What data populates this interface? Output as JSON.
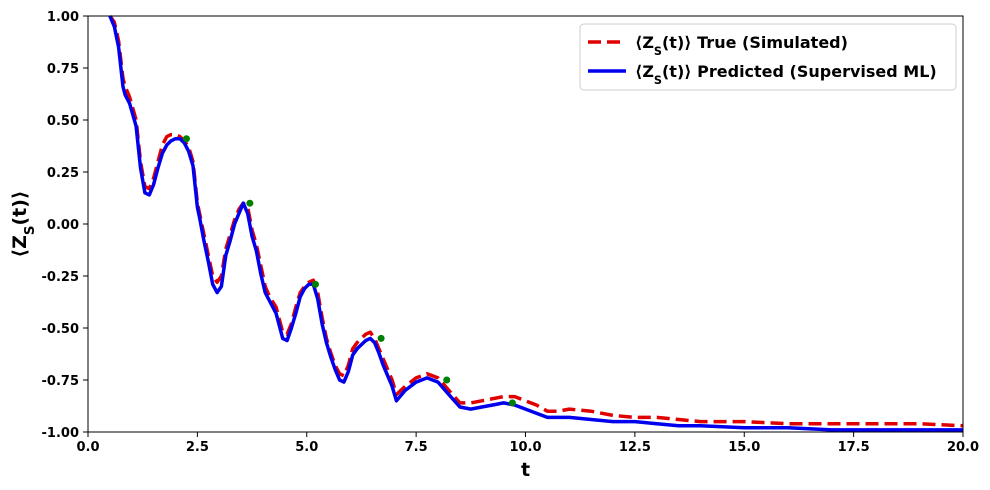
{
  "chart_data": {
    "type": "line",
    "xlabel": "t",
    "ylabel": "⟨Z_S(t)⟩",
    "xlim": [
      0,
      20
    ],
    "ylim": [
      -1,
      1
    ],
    "xticks": [
      "0.0",
      "2.5",
      "5.0",
      "7.5",
      "10.0",
      "12.5",
      "15.0",
      "17.5",
      "20.0"
    ],
    "yticks": [
      "1.00",
      "0.75",
      "0.50",
      "0.25",
      "0.00",
      "-0.25",
      "-0.50",
      "-0.75",
      "-1.00"
    ],
    "legend_position": "top-right",
    "grid": false,
    "colors": {
      "true": "#e00000",
      "predicted": "#0000ee",
      "markers": "#008000"
    },
    "series": [
      {
        "name": "⟨Z_S(t)⟩ True (Simulated)",
        "style": "dashed",
        "x": [
          0.5,
          0.6,
          0.7,
          0.8,
          0.85,
          0.95,
          1.1,
          1.2,
          1.3,
          1.4,
          1.5,
          1.6,
          1.7,
          1.8,
          1.9,
          2.0,
          2.1,
          2.2,
          2.3,
          2.4,
          2.5,
          2.55,
          2.65,
          2.75,
          2.85,
          2.95,
          3.05,
          3.15,
          3.25,
          3.35,
          3.45,
          3.55,
          3.65,
          3.75,
          3.85,
          3.95,
          4.05,
          4.15,
          4.3,
          4.45,
          4.55,
          4.65,
          4.75,
          4.85,
          4.95,
          5.05,
          5.15,
          5.25,
          5.35,
          5.45,
          5.55,
          5.65,
          5.75,
          5.85,
          5.95,
          6.05,
          6.15,
          6.25,
          6.35,
          6.45,
          6.55,
          6.65,
          6.75,
          6.85,
          6.95,
          7.05,
          7.25,
          7.5,
          7.75,
          8.0,
          8.25,
          8.5,
          8.75,
          9.0,
          9.25,
          9.5,
          9.75,
          10.0,
          10.25,
          10.5,
          10.75,
          11.0,
          11.5,
          12.0,
          12.5,
          13.0,
          13.5,
          14.0,
          15.0,
          16.0,
          17.0,
          18.0,
          19.0,
          20.0
        ],
        "values": [
          1.0,
          0.97,
          0.88,
          0.7,
          0.66,
          0.61,
          0.5,
          0.3,
          0.18,
          0.17,
          0.22,
          0.3,
          0.38,
          0.42,
          0.43,
          0.43,
          0.42,
          0.4,
          0.37,
          0.3,
          0.1,
          0.05,
          -0.05,
          -0.15,
          -0.25,
          -0.28,
          -0.25,
          -0.12,
          -0.05,
          0.02,
          0.07,
          0.1,
          0.08,
          -0.03,
          -0.1,
          -0.2,
          -0.3,
          -0.35,
          -0.4,
          -0.52,
          -0.53,
          -0.48,
          -0.4,
          -0.33,
          -0.3,
          -0.28,
          -0.27,
          -0.33,
          -0.45,
          -0.55,
          -0.62,
          -0.68,
          -0.72,
          -0.73,
          -0.68,
          -0.6,
          -0.57,
          -0.55,
          -0.53,
          -0.52,
          -0.55,
          -0.6,
          -0.65,
          -0.7,
          -0.75,
          -0.82,
          -0.78,
          -0.74,
          -0.72,
          -0.74,
          -0.8,
          -0.86,
          -0.86,
          -0.85,
          -0.84,
          -0.83,
          -0.83,
          -0.85,
          -0.87,
          -0.9,
          -0.9,
          -0.89,
          -0.9,
          -0.92,
          -0.93,
          -0.93,
          -0.94,
          -0.95,
          -0.95,
          -0.96,
          -0.96,
          -0.96,
          -0.96,
          -0.97
        ]
      },
      {
        "name": "⟨Z_S(t)⟩ Predicted (Supervised ML)",
        "style": "solid",
        "x": [
          0.5,
          0.6,
          0.7,
          0.8,
          0.85,
          0.95,
          1.1,
          1.2,
          1.3,
          1.4,
          1.5,
          1.6,
          1.7,
          1.8,
          1.9,
          2.0,
          2.1,
          2.2,
          2.3,
          2.4,
          2.5,
          2.55,
          2.65,
          2.75,
          2.85,
          2.95,
          3.05,
          3.15,
          3.25,
          3.35,
          3.45,
          3.55,
          3.65,
          3.75,
          3.85,
          3.95,
          4.05,
          4.15,
          4.3,
          4.45,
          4.55,
          4.65,
          4.75,
          4.85,
          4.95,
          5.05,
          5.15,
          5.25,
          5.35,
          5.45,
          5.55,
          5.65,
          5.75,
          5.85,
          5.95,
          6.05,
          6.15,
          6.25,
          6.35,
          6.45,
          6.55,
          6.65,
          6.75,
          6.85,
          6.95,
          7.05,
          7.25,
          7.5,
          7.75,
          8.0,
          8.25,
          8.5,
          8.75,
          9.0,
          9.25,
          9.5,
          9.75,
          10.0,
          10.25,
          10.5,
          10.75,
          11.0,
          11.5,
          12.0,
          12.5,
          13.0,
          13.5,
          14.0,
          15.0,
          16.0,
          17.0,
          18.0,
          19.0,
          20.0
        ],
        "values": [
          1.0,
          0.95,
          0.85,
          0.66,
          0.62,
          0.58,
          0.47,
          0.27,
          0.15,
          0.14,
          0.19,
          0.27,
          0.34,
          0.38,
          0.4,
          0.41,
          0.41,
          0.39,
          0.35,
          0.28,
          0.08,
          0.03,
          -0.08,
          -0.18,
          -0.29,
          -0.33,
          -0.3,
          -0.15,
          -0.08,
          0.0,
          0.05,
          0.1,
          0.05,
          -0.06,
          -0.13,
          -0.24,
          -0.33,
          -0.37,
          -0.43,
          -0.55,
          -0.56,
          -0.5,
          -0.43,
          -0.35,
          -0.31,
          -0.29,
          -0.29,
          -0.36,
          -0.48,
          -0.57,
          -0.64,
          -0.7,
          -0.75,
          -0.76,
          -0.71,
          -0.63,
          -0.6,
          -0.58,
          -0.56,
          -0.55,
          -0.57,
          -0.62,
          -0.68,
          -0.73,
          -0.78,
          -0.85,
          -0.8,
          -0.76,
          -0.74,
          -0.76,
          -0.82,
          -0.88,
          -0.89,
          -0.88,
          -0.87,
          -0.86,
          -0.87,
          -0.89,
          -0.91,
          -0.93,
          -0.93,
          -0.93,
          -0.94,
          -0.95,
          -0.95,
          -0.96,
          -0.97,
          -0.97,
          -0.98,
          -0.98,
          -0.99,
          -0.99,
          -0.99,
          -0.99
        ]
      }
    ],
    "markers": {
      "x": [
        2.25,
        3.7,
        5.2,
        6.7,
        8.2,
        9.7
      ],
      "values": [
        0.41,
        0.1,
        -0.29,
        -0.55,
        -0.75,
        -0.86
      ]
    }
  }
}
